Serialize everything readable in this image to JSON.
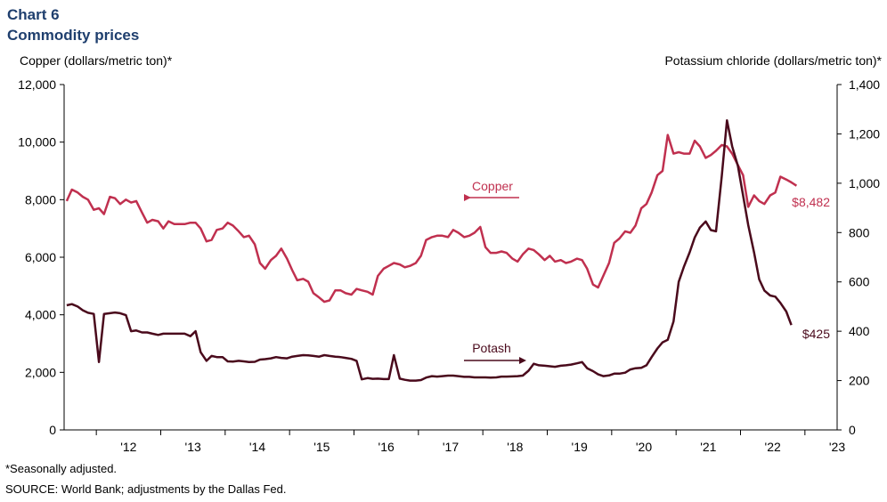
{
  "header": {
    "chart_label": "Chart 6",
    "title": "Commodity prices"
  },
  "footer": {
    "note": "*Seasonally adjusted.",
    "source": "SOURCE: World Bank; adjustments by the Dallas Fed."
  },
  "colors": {
    "copper": "#c0304f",
    "potash": "#4a0a1c",
    "axis": "#000000"
  },
  "chart_data": {
    "type": "line",
    "title": "Commodity prices",
    "xlabel": "",
    "x_ticks": [
      "'12",
      "'13",
      "'14",
      "'15",
      "'16",
      "'17",
      "'18",
      "'19",
      "'20",
      "'21",
      "'22",
      "'23"
    ],
    "x_range": [
      2011.5,
      2023.5
    ],
    "y_left": {
      "label": "Copper (dollars/metric  ton)*",
      "range": [
        0,
        12000
      ],
      "ticks": [
        "0",
        "2,000",
        "4,000",
        "6,000",
        "8,000",
        "10,000",
        "12,000"
      ]
    },
    "y_right": {
      "label": "Potassium chloride  (dollars/metric  ton)*",
      "range": [
        0,
        1400
      ],
      "ticks": [
        "0",
        "200",
        "400",
        "600",
        "800",
        "1,000",
        "1,200",
        "1,400"
      ]
    },
    "series": [
      {
        "name": "Copper",
        "axis": "left",
        "label": "Copper",
        "end_label": "$8,482",
        "points": [
          [
            2011.54,
            7950
          ],
          [
            2011.62,
            8350
          ],
          [
            2011.71,
            8250
          ],
          [
            2011.79,
            8100
          ],
          [
            2011.87,
            8000
          ],
          [
            2011.96,
            7650
          ],
          [
            2012.04,
            7700
          ],
          [
            2012.12,
            7500
          ],
          [
            2012.21,
            8100
          ],
          [
            2012.29,
            8050
          ],
          [
            2012.37,
            7850
          ],
          [
            2012.46,
            8000
          ],
          [
            2012.54,
            7900
          ],
          [
            2012.62,
            7950
          ],
          [
            2012.71,
            7550
          ],
          [
            2012.79,
            7200
          ],
          [
            2012.87,
            7300
          ],
          [
            2012.96,
            7250
          ],
          [
            2013.04,
            7000
          ],
          [
            2013.12,
            7250
          ],
          [
            2013.21,
            7150
          ],
          [
            2013.29,
            7150
          ],
          [
            2013.37,
            7150
          ],
          [
            2013.46,
            7200
          ],
          [
            2013.54,
            7200
          ],
          [
            2013.62,
            7000
          ],
          [
            2013.71,
            6550
          ],
          [
            2013.79,
            6600
          ],
          [
            2013.87,
            6950
          ],
          [
            2013.96,
            7000
          ],
          [
            2014.04,
            7200
          ],
          [
            2014.12,
            7100
          ],
          [
            2014.21,
            6900
          ],
          [
            2014.29,
            6700
          ],
          [
            2014.37,
            6750
          ],
          [
            2014.46,
            6450
          ],
          [
            2014.54,
            5800
          ],
          [
            2014.62,
            5600
          ],
          [
            2014.71,
            5900
          ],
          [
            2014.79,
            6050
          ],
          [
            2014.87,
            6300
          ],
          [
            2014.96,
            5950
          ],
          [
            2015.04,
            5550
          ],
          [
            2015.12,
            5200
          ],
          [
            2015.21,
            5250
          ],
          [
            2015.29,
            5150
          ],
          [
            2015.37,
            4750
          ],
          [
            2015.46,
            4600
          ],
          [
            2015.54,
            4450
          ],
          [
            2015.62,
            4500
          ],
          [
            2015.71,
            4850
          ],
          [
            2015.79,
            4850
          ],
          [
            2015.87,
            4750
          ],
          [
            2015.96,
            4700
          ],
          [
            2016.04,
            4900
          ],
          [
            2016.12,
            4850
          ],
          [
            2016.21,
            4800
          ],
          [
            2016.29,
            4700
          ],
          [
            2016.37,
            5350
          ],
          [
            2016.46,
            5600
          ],
          [
            2016.54,
            5700
          ],
          [
            2016.62,
            5800
          ],
          [
            2016.71,
            5750
          ],
          [
            2016.79,
            5650
          ],
          [
            2016.87,
            5700
          ],
          [
            2016.96,
            5800
          ],
          [
            2017.04,
            6050
          ],
          [
            2017.12,
            6600
          ],
          [
            2017.21,
            6700
          ],
          [
            2017.29,
            6750
          ],
          [
            2017.37,
            6750
          ],
          [
            2017.46,
            6700
          ],
          [
            2017.54,
            6950
          ],
          [
            2017.62,
            6850
          ],
          [
            2017.71,
            6700
          ],
          [
            2017.79,
            6750
          ],
          [
            2017.87,
            6850
          ],
          [
            2017.96,
            7050
          ],
          [
            2018.04,
            6350
          ],
          [
            2018.12,
            6150
          ],
          [
            2018.21,
            6150
          ],
          [
            2018.29,
            6200
          ],
          [
            2018.37,
            6150
          ],
          [
            2018.46,
            5950
          ],
          [
            2018.54,
            5850
          ],
          [
            2018.62,
            6100
          ],
          [
            2018.71,
            6300
          ],
          [
            2018.79,
            6250
          ],
          [
            2018.87,
            6100
          ],
          [
            2018.96,
            5900
          ],
          [
            2019.04,
            6050
          ],
          [
            2019.12,
            5850
          ],
          [
            2019.21,
            5900
          ],
          [
            2019.29,
            5800
          ],
          [
            2019.37,
            5850
          ],
          [
            2019.46,
            5950
          ],
          [
            2019.54,
            5900
          ],
          [
            2019.62,
            5600
          ],
          [
            2019.71,
            5050
          ],
          [
            2019.79,
            4950
          ],
          [
            2019.87,
            5350
          ],
          [
            2019.96,
            5800
          ],
          [
            2020.04,
            6500
          ],
          [
            2020.12,
            6650
          ],
          [
            2020.21,
            6900
          ],
          [
            2020.29,
            6850
          ],
          [
            2020.37,
            7100
          ],
          [
            2020.46,
            7700
          ],
          [
            2020.54,
            7850
          ],
          [
            2020.62,
            8250
          ],
          [
            2020.71,
            8850
          ],
          [
            2020.79,
            9000
          ],
          [
            2020.87,
            10250
          ],
          [
            2020.96,
            9600
          ],
          [
            2021.04,
            9650
          ],
          [
            2021.12,
            9600
          ],
          [
            2021.21,
            9600
          ],
          [
            2021.29,
            10050
          ],
          [
            2021.37,
            9850
          ],
          [
            2021.46,
            9450
          ],
          [
            2021.54,
            9550
          ],
          [
            2021.62,
            9700
          ],
          [
            2021.71,
            9900
          ],
          [
            2021.79,
            9850
          ],
          [
            2021.87,
            9600
          ],
          [
            2021.96,
            9200
          ],
          [
            2022.04,
            8850
          ],
          [
            2022.12,
            7750
          ],
          [
            2022.21,
            8150
          ],
          [
            2022.29,
            7950
          ],
          [
            2022.37,
            7850
          ],
          [
            2022.46,
            8150
          ],
          [
            2022.54,
            8250
          ],
          [
            2022.62,
            8800
          ],
          [
            2022.71,
            8700
          ],
          [
            2022.79,
            8600
          ],
          [
            2022.87,
            8482
          ]
        ]
      },
      {
        "name": "Potash",
        "axis": "right",
        "label": "Potash",
        "end_label": "$425",
        "points": [
          [
            2011.54,
            505
          ],
          [
            2011.62,
            510
          ],
          [
            2011.71,
            500
          ],
          [
            2011.79,
            485
          ],
          [
            2011.87,
            475
          ],
          [
            2011.96,
            470
          ],
          [
            2012.04,
            275
          ],
          [
            2012.12,
            470
          ],
          [
            2012.21,
            473
          ],
          [
            2012.29,
            476
          ],
          [
            2012.37,
            473
          ],
          [
            2012.46,
            465
          ],
          [
            2012.54,
            400
          ],
          [
            2012.62,
            403
          ],
          [
            2012.71,
            395
          ],
          [
            2012.79,
            395
          ],
          [
            2012.87,
            390
          ],
          [
            2012.96,
            385
          ],
          [
            2013.04,
            390
          ],
          [
            2013.12,
            390
          ],
          [
            2013.21,
            390
          ],
          [
            2013.29,
            390
          ],
          [
            2013.37,
            390
          ],
          [
            2013.46,
            380
          ],
          [
            2013.54,
            400
          ],
          [
            2013.62,
            315
          ],
          [
            2013.71,
            280
          ],
          [
            2013.79,
            300
          ],
          [
            2013.87,
            295
          ],
          [
            2013.96,
            295
          ],
          [
            2014.04,
            278
          ],
          [
            2014.12,
            277
          ],
          [
            2014.21,
            280
          ],
          [
            2014.29,
            278
          ],
          [
            2014.37,
            275
          ],
          [
            2014.46,
            276
          ],
          [
            2014.54,
            285
          ],
          [
            2014.62,
            287
          ],
          [
            2014.71,
            290
          ],
          [
            2014.79,
            295
          ],
          [
            2014.87,
            292
          ],
          [
            2014.96,
            290
          ],
          [
            2015.04,
            297
          ],
          [
            2015.12,
            300
          ],
          [
            2015.21,
            303
          ],
          [
            2015.29,
            302
          ],
          [
            2015.37,
            300
          ],
          [
            2015.46,
            297
          ],
          [
            2015.54,
            303
          ],
          [
            2015.62,
            300
          ],
          [
            2015.71,
            297
          ],
          [
            2015.79,
            295
          ],
          [
            2015.87,
            292
          ],
          [
            2015.96,
            288
          ],
          [
            2016.04,
            280
          ],
          [
            2016.12,
            205
          ],
          [
            2016.21,
            210
          ],
          [
            2016.29,
            207
          ],
          [
            2016.37,
            208
          ],
          [
            2016.46,
            206
          ],
          [
            2016.54,
            206
          ],
          [
            2016.62,
            303
          ],
          [
            2016.71,
            208
          ],
          [
            2016.79,
            203
          ],
          [
            2016.87,
            200
          ],
          [
            2016.96,
            200
          ],
          [
            2017.04,
            202
          ],
          [
            2017.12,
            212
          ],
          [
            2017.21,
            218
          ],
          [
            2017.29,
            216
          ],
          [
            2017.37,
            218
          ],
          [
            2017.46,
            220
          ],
          [
            2017.54,
            220
          ],
          [
            2017.62,
            218
          ],
          [
            2017.71,
            215
          ],
          [
            2017.79,
            215
          ],
          [
            2017.87,
            213
          ],
          [
            2017.96,
            213
          ],
          [
            2018.04,
            213
          ],
          [
            2018.12,
            212
          ],
          [
            2018.21,
            213
          ],
          [
            2018.29,
            216
          ],
          [
            2018.37,
            216
          ],
          [
            2018.46,
            217
          ],
          [
            2018.54,
            218
          ],
          [
            2018.62,
            220
          ],
          [
            2018.71,
            240
          ],
          [
            2018.79,
            268
          ],
          [
            2018.87,
            262
          ],
          [
            2018.96,
            260
          ],
          [
            2019.04,
            258
          ],
          [
            2019.12,
            256
          ],
          [
            2019.21,
            260
          ],
          [
            2019.29,
            262
          ],
          [
            2019.37,
            265
          ],
          [
            2019.46,
            270
          ],
          [
            2019.54,
            275
          ],
          [
            2019.62,
            250
          ],
          [
            2019.71,
            238
          ],
          [
            2019.79,
            225
          ],
          [
            2019.87,
            218
          ],
          [
            2019.96,
            221
          ],
          [
            2020.04,
            228
          ],
          [
            2020.12,
            228
          ],
          [
            2020.21,
            232
          ],
          [
            2020.29,
            245
          ],
          [
            2020.37,
            250
          ],
          [
            2020.46,
            252
          ],
          [
            2020.54,
            262
          ],
          [
            2020.62,
            295
          ],
          [
            2020.71,
            330
          ],
          [
            2020.79,
            355
          ],
          [
            2020.87,
            365
          ],
          [
            2020.96,
            440
          ],
          [
            2021.04,
            600
          ],
          [
            2021.12,
            660
          ],
          [
            2021.21,
            720
          ],
          [
            2021.29,
            780
          ],
          [
            2021.37,
            820
          ],
          [
            2021.46,
            845
          ],
          [
            2021.54,
            810
          ],
          [
            2021.62,
            805
          ],
          [
            2021.71,
            1030
          ],
          [
            2021.79,
            1255
          ],
          [
            2021.87,
            1150
          ],
          [
            2021.96,
            1070
          ],
          [
            2022.04,
            950
          ],
          [
            2022.12,
            830
          ],
          [
            2022.21,
            720
          ],
          [
            2022.29,
            610
          ],
          [
            2022.37,
            565
          ],
          [
            2022.46,
            545
          ],
          [
            2022.54,
            540
          ],
          [
            2022.62,
            515
          ],
          [
            2022.71,
            480
          ],
          [
            2022.79,
            425
          ]
        ]
      }
    ]
  }
}
